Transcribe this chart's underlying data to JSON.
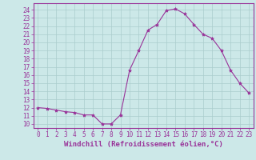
{
  "x": [
    0,
    1,
    2,
    3,
    4,
    5,
    6,
    7,
    8,
    9,
    10,
    11,
    12,
    13,
    14,
    15,
    16,
    17,
    18,
    19,
    20,
    21,
    22,
    23
  ],
  "y": [
    12.0,
    11.9,
    11.7,
    11.5,
    11.4,
    11.1,
    11.1,
    10.0,
    10.0,
    11.1,
    16.6,
    19.0,
    21.5,
    22.2,
    23.9,
    24.1,
    23.5,
    22.2,
    21.0,
    20.5,
    19.0,
    16.6,
    15.0,
    13.8
  ],
  "line_color": "#993399",
  "marker": "*",
  "marker_size": 3,
  "bg_color": "#cce8e8",
  "grid_color": "#aacccc",
  "xlabel": "Windchill (Refroidissement éolien,°C)",
  "ylabel_ticks": [
    10,
    11,
    12,
    13,
    14,
    15,
    16,
    17,
    18,
    19,
    20,
    21,
    22,
    23,
    24
  ],
  "ylim": [
    9.5,
    24.8
  ],
  "xlim": [
    -0.5,
    23.5
  ],
  "axis_label_color": "#993399",
  "tick_color": "#993399",
  "xlabel_fontsize": 6.5,
  "tick_fontsize": 5.5
}
